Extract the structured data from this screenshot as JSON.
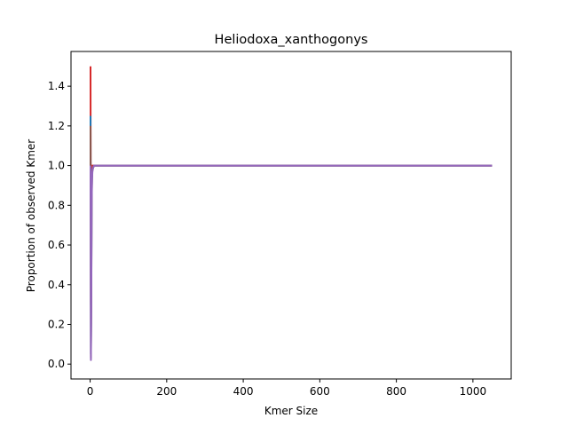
{
  "chart_data": {
    "type": "line",
    "title": "Heliodoxa_xanthogonys",
    "xlabel": "Kmer Size",
    "ylabel": "Proportion of observed Kmer",
    "xlim": [
      -50,
      1100
    ],
    "ylim": [
      -0.075,
      1.575
    ],
    "xticks": [
      0,
      200,
      400,
      600,
      800,
      1000
    ],
    "yticks": [
      0.0,
      0.2,
      0.4,
      0.6,
      0.8,
      1.0,
      1.2,
      1.4
    ],
    "xtick_labels": [
      "0",
      "200",
      "400",
      "600",
      "800",
      "1000"
    ],
    "ytick_labels": [
      "0.0",
      "0.2",
      "0.4",
      "0.6",
      "0.8",
      "1.0",
      "1.2",
      "1.4"
    ],
    "grid": false,
    "series": [
      {
        "color": "#d62728",
        "x": [
          1,
          2,
          3,
          4,
          5,
          6,
          8,
          10,
          15,
          1050
        ],
        "y": [
          1.5,
          0.3,
          0.9,
          1.0,
          1.0,
          1.0,
          1.0,
          1.0,
          1.0,
          1.0
        ]
      },
      {
        "color": "#1f77b4",
        "x": [
          1,
          2,
          3,
          4,
          5,
          6,
          8,
          10,
          15,
          1050
        ],
        "y": [
          1.25,
          0.05,
          0.35,
          0.85,
          0.95,
          0.98,
          0.99,
          1.0,
          1.0,
          1.0
        ]
      },
      {
        "color": "#8c564b",
        "x": [
          1,
          2,
          3,
          4,
          5,
          6,
          8,
          10,
          15,
          1050
        ],
        "y": [
          1.2,
          0.03,
          0.3,
          0.82,
          0.94,
          0.98,
          0.99,
          1.0,
          1.0,
          1.0
        ]
      },
      {
        "color": "#9467bd",
        "x": [
          1,
          2,
          3,
          4,
          5,
          6,
          8,
          10,
          15,
          1050
        ],
        "y": [
          1.0,
          0.02,
          0.28,
          0.8,
          0.93,
          0.97,
          0.99,
          1.0,
          1.0,
          1.0
        ]
      }
    ]
  }
}
